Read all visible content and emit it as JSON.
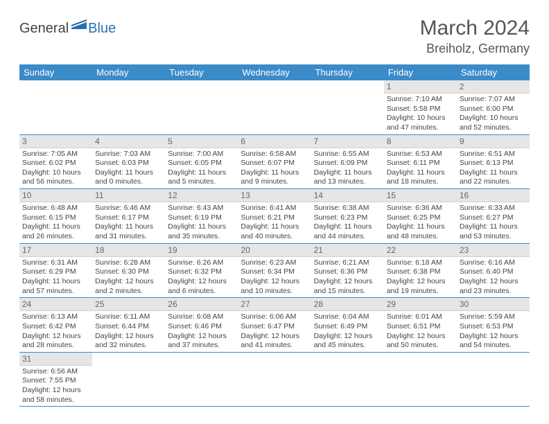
{
  "logo": {
    "text1": "General",
    "text2": "Blue"
  },
  "title": "March 2024",
  "location": "Breiholz, Germany",
  "colors": {
    "header_bg": "#3b8bc9",
    "header_text": "#ffffff",
    "daynum_bg": "#e6e6e6",
    "daynum_text": "#666666",
    "body_text": "#444444",
    "row_border": "#3b8bc9",
    "logo_blue": "#2a6fb5"
  },
  "weekdays": [
    "Sunday",
    "Monday",
    "Tuesday",
    "Wednesday",
    "Thursday",
    "Friday",
    "Saturday"
  ],
  "first_weekday_index": 5,
  "days": [
    {
      "n": 1,
      "sunrise": "7:10 AM",
      "sunset": "5:58 PM",
      "daylight": "10 hours and 47 minutes."
    },
    {
      "n": 2,
      "sunrise": "7:07 AM",
      "sunset": "6:00 PM",
      "daylight": "10 hours and 52 minutes."
    },
    {
      "n": 3,
      "sunrise": "7:05 AM",
      "sunset": "6:02 PM",
      "daylight": "10 hours and 56 minutes."
    },
    {
      "n": 4,
      "sunrise": "7:03 AM",
      "sunset": "6:03 PM",
      "daylight": "11 hours and 0 minutes."
    },
    {
      "n": 5,
      "sunrise": "7:00 AM",
      "sunset": "6:05 PM",
      "daylight": "11 hours and 5 minutes."
    },
    {
      "n": 6,
      "sunrise": "6:58 AM",
      "sunset": "6:07 PM",
      "daylight": "11 hours and 9 minutes."
    },
    {
      "n": 7,
      "sunrise": "6:55 AM",
      "sunset": "6:09 PM",
      "daylight": "11 hours and 13 minutes."
    },
    {
      "n": 8,
      "sunrise": "6:53 AM",
      "sunset": "6:11 PM",
      "daylight": "11 hours and 18 minutes."
    },
    {
      "n": 9,
      "sunrise": "6:51 AM",
      "sunset": "6:13 PM",
      "daylight": "11 hours and 22 minutes."
    },
    {
      "n": 10,
      "sunrise": "6:48 AM",
      "sunset": "6:15 PM",
      "daylight": "11 hours and 26 minutes."
    },
    {
      "n": 11,
      "sunrise": "6:46 AM",
      "sunset": "6:17 PM",
      "daylight": "11 hours and 31 minutes."
    },
    {
      "n": 12,
      "sunrise": "6:43 AM",
      "sunset": "6:19 PM",
      "daylight": "11 hours and 35 minutes."
    },
    {
      "n": 13,
      "sunrise": "6:41 AM",
      "sunset": "6:21 PM",
      "daylight": "11 hours and 40 minutes."
    },
    {
      "n": 14,
      "sunrise": "6:38 AM",
      "sunset": "6:23 PM",
      "daylight": "11 hours and 44 minutes."
    },
    {
      "n": 15,
      "sunrise": "6:36 AM",
      "sunset": "6:25 PM",
      "daylight": "11 hours and 48 minutes."
    },
    {
      "n": 16,
      "sunrise": "6:33 AM",
      "sunset": "6:27 PM",
      "daylight": "11 hours and 53 minutes."
    },
    {
      "n": 17,
      "sunrise": "6:31 AM",
      "sunset": "6:29 PM",
      "daylight": "11 hours and 57 minutes."
    },
    {
      "n": 18,
      "sunrise": "6:28 AM",
      "sunset": "6:30 PM",
      "daylight": "12 hours and 2 minutes."
    },
    {
      "n": 19,
      "sunrise": "6:26 AM",
      "sunset": "6:32 PM",
      "daylight": "12 hours and 6 minutes."
    },
    {
      "n": 20,
      "sunrise": "6:23 AM",
      "sunset": "6:34 PM",
      "daylight": "12 hours and 10 minutes."
    },
    {
      "n": 21,
      "sunrise": "6:21 AM",
      "sunset": "6:36 PM",
      "daylight": "12 hours and 15 minutes."
    },
    {
      "n": 22,
      "sunrise": "6:18 AM",
      "sunset": "6:38 PM",
      "daylight": "12 hours and 19 minutes."
    },
    {
      "n": 23,
      "sunrise": "6:16 AM",
      "sunset": "6:40 PM",
      "daylight": "12 hours and 23 minutes."
    },
    {
      "n": 24,
      "sunrise": "6:13 AM",
      "sunset": "6:42 PM",
      "daylight": "12 hours and 28 minutes."
    },
    {
      "n": 25,
      "sunrise": "6:11 AM",
      "sunset": "6:44 PM",
      "daylight": "12 hours and 32 minutes."
    },
    {
      "n": 26,
      "sunrise": "6:08 AM",
      "sunset": "6:46 PM",
      "daylight": "12 hours and 37 minutes."
    },
    {
      "n": 27,
      "sunrise": "6:06 AM",
      "sunset": "6:47 PM",
      "daylight": "12 hours and 41 minutes."
    },
    {
      "n": 28,
      "sunrise": "6:04 AM",
      "sunset": "6:49 PM",
      "daylight": "12 hours and 45 minutes."
    },
    {
      "n": 29,
      "sunrise": "6:01 AM",
      "sunset": "6:51 PM",
      "daylight": "12 hours and 50 minutes."
    },
    {
      "n": 30,
      "sunrise": "5:59 AM",
      "sunset": "6:53 PM",
      "daylight": "12 hours and 54 minutes."
    },
    {
      "n": 31,
      "sunrise": "6:56 AM",
      "sunset": "7:55 PM",
      "daylight": "12 hours and 58 minutes."
    }
  ],
  "labels": {
    "sunrise": "Sunrise:",
    "sunset": "Sunset:",
    "daylight": "Daylight:"
  }
}
